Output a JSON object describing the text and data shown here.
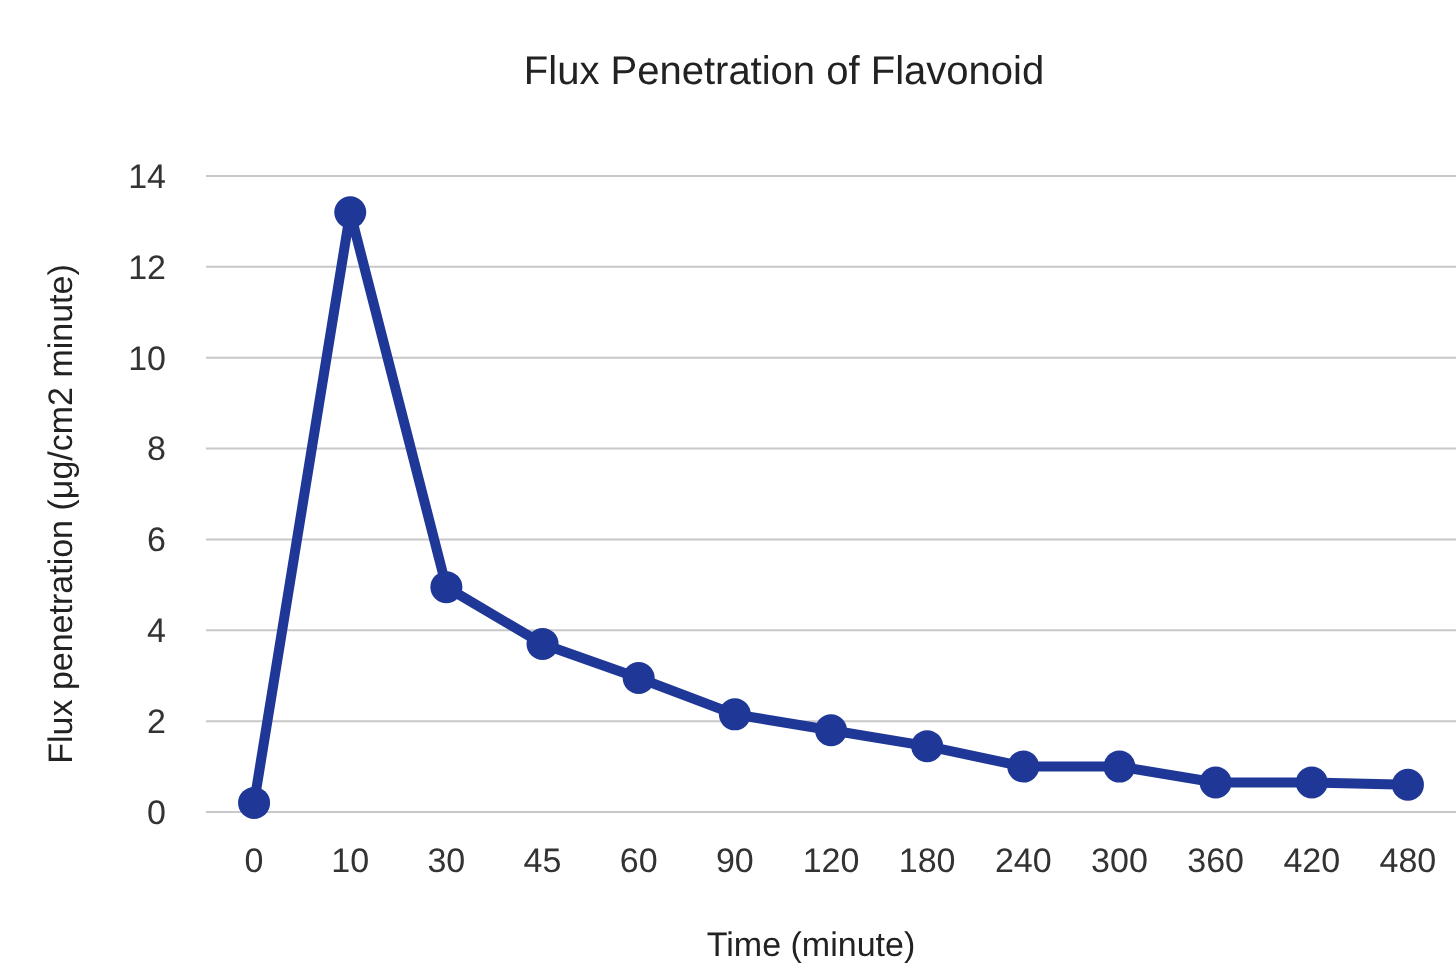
{
  "chart_data": {
    "type": "line",
    "title": "Flux  Penetration  of Flavonoid",
    "xlabel": "Time  (minute)",
    "ylabel": "Flux penetration  (μg/cm2 minute)",
    "categories": [
      "0",
      "10",
      "30",
      "45",
      "60",
      "90",
      "120",
      "180",
      "240",
      "300",
      "360",
      "420",
      "480"
    ],
    "series": [
      {
        "color": "#1f3796",
        "values": [
          0.2,
          13.2,
          4.95,
          3.7,
          2.95,
          2.15,
          1.8,
          1.45,
          1.0,
          1.0,
          0.65,
          0.65,
          0.6
        ]
      }
    ],
    "ylim": [
      0,
      14
    ],
    "yticks": [
      0,
      2,
      4,
      6,
      8,
      10,
      12,
      14
    ],
    "grid": "y",
    "marker": "circle",
    "line_style": "solid"
  }
}
